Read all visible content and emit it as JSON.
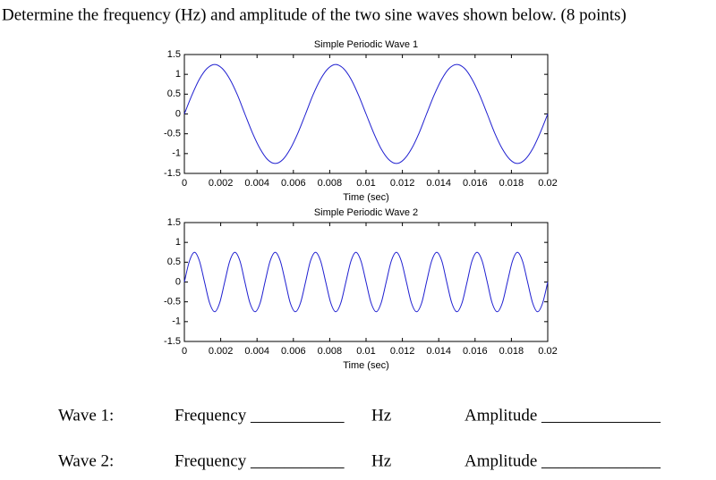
{
  "question": "Determine the frequency (Hz) and amplitude of the two sine waves shown below. (8 points)",
  "chart_data": [
    {
      "type": "line",
      "title": "Simple Periodic Wave 1",
      "x_label": "Time (sec)",
      "x": [
        0,
        0.00042,
        0.00083,
        0.00125,
        0.00167,
        0.00208,
        0.0025,
        0.00292,
        0.00333,
        0.00375,
        0.00417,
        0.00458,
        0.005,
        0.00542,
        0.00583,
        0.00625,
        0.00667,
        0.00708,
        0.0075,
        0.00792,
        0.00833,
        0.00875,
        0.00917,
        0.00958,
        0.01,
        0.01042,
        0.01083,
        0.01125,
        0.01167,
        0.01208,
        0.0125,
        0.01292,
        0.01333,
        0.01375,
        0.01417,
        0.01458,
        0.015,
        0.01542,
        0.01583,
        0.01625,
        0.01667,
        0.01708,
        0.0175,
        0.01792,
        0.01833,
        0.01875,
        0.01917,
        0.01958,
        0.02
      ],
      "series": [
        {
          "color": "#1f1fd0",
          "values": [
            0,
            0.48,
            0.88,
            1.15,
            1.25,
            1.15,
            0.88,
            0.48,
            0,
            -0.48,
            -0.88,
            -1.15,
            -1.25,
            -1.15,
            -0.88,
            -0.48,
            0,
            0.48,
            0.88,
            1.15,
            1.25,
            1.15,
            0.88,
            0.48,
            0,
            -0.48,
            -0.88,
            -1.15,
            -1.25,
            -1.15,
            -0.88,
            -0.48,
            0,
            0.48,
            0.88,
            1.15,
            1.25,
            1.15,
            0.88,
            0.48,
            0,
            -0.48,
            -0.88,
            -1.15,
            -1.25,
            -1.15,
            -0.88,
            -0.48,
            0
          ]
        }
      ],
      "xlim": [
        0,
        0.02
      ],
      "xticks": [
        0,
        0.002,
        0.004,
        0.006,
        0.008,
        0.01,
        0.012,
        0.014,
        0.016,
        0.018,
        0.02
      ],
      "ylim": [
        -1.5,
        1.5
      ],
      "yticks": [
        -1.5,
        -1,
        -0.5,
        0,
        0.5,
        1,
        1.5
      ]
    },
    {
      "type": "line",
      "title": "Simple Periodic Wave 2",
      "x_label": "Time (sec)",
      "x": [
        0,
        0.00028,
        0.00056,
        0.00083,
        0.00111,
        0.00139,
        0.00167,
        0.00194,
        0.00222,
        0.0025,
        0.00278,
        0.00306,
        0.00333,
        0.00361,
        0.00389,
        0.00417,
        0.00444,
        0.00472,
        0.005,
        0.00528,
        0.00556,
        0.00583,
        0.00611,
        0.00639,
        0.00667,
        0.00694,
        0.00722,
        0.0075,
        0.00778,
        0.00806,
        0.00833,
        0.00861,
        0.00889,
        0.00917,
        0.00944,
        0.00972,
        0.01,
        0.01028,
        0.01056,
        0.01083,
        0.01111,
        0.01139,
        0.01167,
        0.01194,
        0.01222,
        0.0125,
        0.01278,
        0.01306,
        0.01333,
        0.01361,
        0.01389,
        0.01417,
        0.01444,
        0.01472,
        0.015,
        0.01528,
        0.01556,
        0.01583,
        0.01611,
        0.01639,
        0.01667,
        0.01694,
        0.01722,
        0.0175,
        0.01778,
        0.01806,
        0.01833,
        0.01861,
        0.01889,
        0.01917,
        0.01944,
        0.01972,
        0.02
      ],
      "series": [
        {
          "color": "#1f1fd0",
          "values": [
            0,
            0.53,
            0.75,
            0.53,
            0,
            -0.53,
            -0.75,
            -0.53,
            0,
            0.53,
            0.75,
            0.53,
            0,
            -0.53,
            -0.75,
            -0.53,
            0,
            0.53,
            0.75,
            0.53,
            0,
            -0.53,
            -0.75,
            -0.53,
            0,
            0.53,
            0.75,
            0.53,
            0,
            -0.53,
            -0.75,
            -0.53,
            0,
            0.53,
            0.75,
            0.53,
            0,
            -0.53,
            -0.75,
            -0.53,
            0,
            0.53,
            0.75,
            0.53,
            0,
            -0.53,
            -0.75,
            -0.53,
            0,
            0.53,
            0.75,
            0.53,
            0,
            -0.53,
            -0.75,
            -0.53,
            0,
            0.53,
            0.75,
            0.53,
            0,
            -0.53,
            -0.75,
            -0.53,
            0,
            0.53,
            0.75,
            0.53,
            0,
            -0.53,
            -0.75,
            -0.53,
            0
          ]
        }
      ],
      "xlim": [
        0,
        0.02
      ],
      "xticks": [
        0,
        0.002,
        0.004,
        0.006,
        0.008,
        0.01,
        0.012,
        0.014,
        0.016,
        0.018,
        0.02
      ],
      "ylim": [
        -1.5,
        1.5
      ],
      "yticks": [
        -1.5,
        -1,
        -0.5,
        0,
        0.5,
        1,
        1.5
      ]
    }
  ],
  "answers": [
    {
      "label": "Wave 1:",
      "frequency": "Frequency ___________",
      "unit": "Hz",
      "amplitude": "Amplitude ______________"
    },
    {
      "label": "Wave 2:",
      "frequency": "Frequency ___________",
      "unit": "Hz",
      "amplitude": "Amplitude ______________"
    }
  ]
}
